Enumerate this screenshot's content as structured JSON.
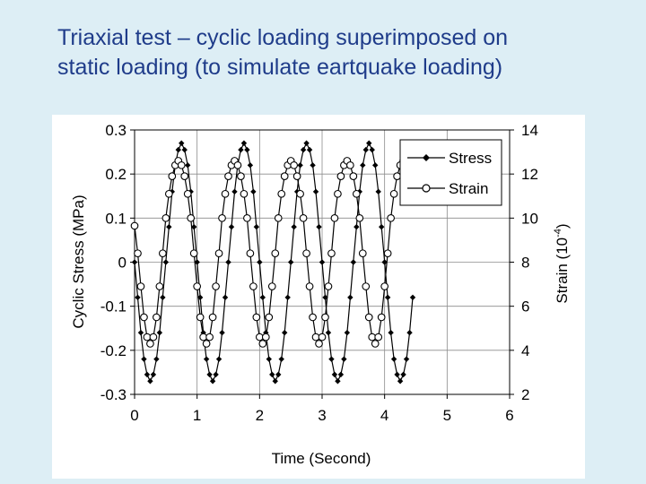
{
  "slide": {
    "title_line1": "Triaxial test – cyclic loading superimposed on",
    "title_line2": "static loading (to simulate eartquake loading)"
  },
  "chart_data": {
    "type": "line",
    "xlabel": "Time (Second)",
    "ylabel": "Cyclic Stress (MPa)",
    "y2label_main": "Strain (10",
    "y2label_sup": "-4",
    "y2label_close": ")",
    "xlim": [
      0,
      6
    ],
    "ylim": [
      -0.3,
      0.3
    ],
    "y2lim": [
      2,
      14
    ],
    "x_ticks": [
      "0",
      "1",
      "2",
      "3",
      "4",
      "5",
      "6"
    ],
    "y_ticks": [
      "0.3",
      "0.2",
      "0.1",
      "0",
      "-0.1",
      "-0.2",
      "-0.3"
    ],
    "y2_ticks": [
      "14",
      "12",
      "10",
      "8",
      "6",
      "4",
      "2"
    ],
    "grid": true,
    "legend_position": "top-right",
    "series": [
      {
        "name": "Stress",
        "axis": "left",
        "marker": "filled-diamond",
        "x": [
          0.0,
          0.05,
          0.1,
          0.15,
          0.2,
          0.25,
          0.3,
          0.35,
          0.4,
          0.45,
          0.5,
          0.55,
          0.6,
          0.65,
          0.7,
          0.75,
          0.8,
          0.85,
          0.9,
          0.95,
          1.0,
          1.05,
          1.1,
          1.15,
          1.2,
          1.25,
          1.3,
          1.35,
          1.4,
          1.45,
          1.5,
          1.55,
          1.6,
          1.65,
          1.7,
          1.75,
          1.8,
          1.85,
          1.9,
          1.95,
          2.0,
          2.05,
          2.1,
          2.15,
          2.2,
          2.25,
          2.3,
          2.35,
          2.4,
          2.45,
          2.5,
          2.55,
          2.6,
          2.65,
          2.7,
          2.75,
          2.8,
          2.85,
          2.9,
          2.95,
          3.0,
          3.05,
          3.1,
          3.15,
          3.2,
          3.25,
          3.3,
          3.35,
          3.4,
          3.45,
          3.5,
          3.55,
          3.6,
          3.65,
          3.7,
          3.75,
          3.8,
          3.85,
          3.9,
          3.95,
          4.0,
          4.05,
          4.1,
          4.15,
          4.2,
          4.25,
          4.3,
          4.35,
          4.4,
          4.45
        ],
        "y": [
          0.0,
          -0.08,
          -0.16,
          -0.22,
          -0.255,
          -0.27,
          -0.255,
          -0.22,
          -0.16,
          -0.08,
          0.0,
          0.08,
          0.16,
          0.22,
          0.255,
          0.27,
          0.255,
          0.22,
          0.16,
          0.08,
          0.0,
          -0.08,
          -0.16,
          -0.22,
          -0.255,
          -0.27,
          -0.255,
          -0.22,
          -0.16,
          -0.08,
          0.0,
          0.08,
          0.16,
          0.22,
          0.255,
          0.27,
          0.255,
          0.22,
          0.16,
          0.08,
          0.0,
          -0.08,
          -0.16,
          -0.22,
          -0.255,
          -0.27,
          -0.255,
          -0.22,
          -0.16,
          -0.08,
          0.0,
          0.08,
          0.16,
          0.22,
          0.255,
          0.27,
          0.255,
          0.22,
          0.16,
          0.08,
          0.0,
          -0.08,
          -0.16,
          -0.22,
          -0.255,
          -0.27,
          -0.255,
          -0.22,
          -0.16,
          -0.08,
          0.0,
          0.08,
          0.16,
          0.22,
          0.255,
          0.27,
          0.255,
          0.22,
          0.16,
          0.08,
          0.0,
          -0.08,
          -0.16,
          -0.22,
          -0.255,
          -0.27,
          -0.255,
          -0.22,
          -0.16,
          -0.08
        ]
      },
      {
        "name": "Strain",
        "axis": "right",
        "marker": "open-circle",
        "x": [
          0.0,
          0.05,
          0.1,
          0.15,
          0.2,
          0.25,
          0.3,
          0.35,
          0.4,
          0.45,
          0.5,
          0.55,
          0.6,
          0.65,
          0.7,
          0.75,
          0.8,
          0.85,
          0.9,
          0.95,
          1.0,
          1.05,
          1.1,
          1.15,
          1.2,
          1.25,
          1.3,
          1.35,
          1.4,
          1.45,
          1.5,
          1.55,
          1.6,
          1.65,
          1.7,
          1.75,
          1.8,
          1.85,
          1.9,
          1.95,
          2.0,
          2.05,
          2.1,
          2.15,
          2.2,
          2.25,
          2.3,
          2.35,
          2.4,
          2.45,
          2.5,
          2.55,
          2.6,
          2.65,
          2.7,
          2.75,
          2.8,
          2.85,
          2.9,
          2.95,
          3.0,
          3.05,
          3.1,
          3.15,
          3.2,
          3.25,
          3.3,
          3.35,
          3.4,
          3.45,
          3.5,
          3.55,
          3.6,
          3.65,
          3.7,
          3.75,
          3.8,
          3.85,
          3.9,
          3.95,
          4.0,
          4.05,
          4.1,
          4.15,
          4.2,
          4.25,
          4.3,
          4.35,
          4.4,
          4.45
        ],
        "y": [
          9.65,
          8.4,
          6.9,
          5.5,
          4.6,
          4.3,
          4.6,
          5.5,
          6.9,
          8.4,
          10.0,
          11.1,
          11.9,
          12.4,
          12.6,
          12.4,
          11.9,
          11.1,
          10.0,
          8.4,
          6.9,
          5.5,
          4.6,
          4.3,
          4.6,
          5.5,
          6.9,
          8.4,
          10.0,
          11.1,
          11.9,
          12.4,
          12.6,
          12.4,
          11.9,
          11.1,
          10.0,
          8.4,
          6.9,
          5.5,
          4.6,
          4.3,
          4.6,
          5.5,
          6.9,
          8.4,
          10.0,
          11.1,
          11.9,
          12.4,
          12.6,
          12.4,
          11.9,
          11.1,
          10.0,
          8.4,
          6.9,
          5.5,
          4.6,
          4.3,
          4.6,
          5.5,
          6.9,
          8.4,
          10.0,
          11.1,
          11.9,
          12.4,
          12.6,
          12.4,
          11.9,
          11.1,
          10.0,
          8.4,
          6.9,
          5.5,
          4.6,
          4.3,
          4.6,
          5.5,
          6.9,
          8.4,
          10.0,
          11.1,
          11.9,
          12.4,
          12.6,
          12.4,
          11.9,
          11.1
        ]
      }
    ]
  }
}
